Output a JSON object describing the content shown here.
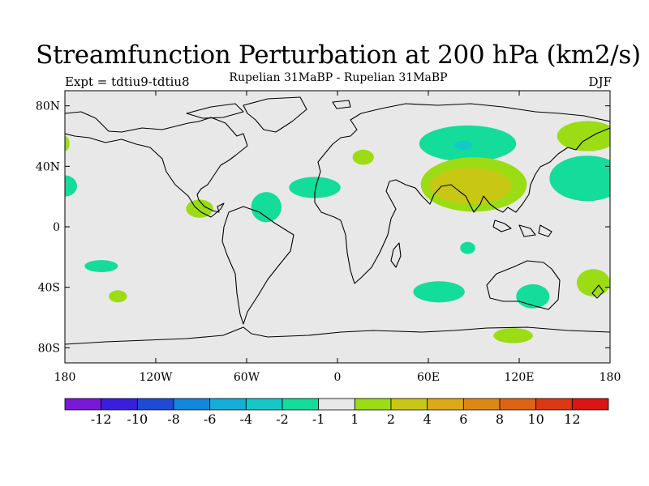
{
  "title": "Streamfunction Perturbation at 200 hPa (km2/s)",
  "subtitle": "Rupelian  31MaBP - Rupelian  31MaBP",
  "expt_label": "Expt = tdtiu9-tdtiu8",
  "season": "DJF",
  "map": {
    "projection": "cylindrical-equidistant",
    "lon_range": [
      -180,
      180
    ],
    "lat_range": [
      -90,
      90
    ],
    "lat_ticks": [
      {
        "value": 80,
        "label": "80N"
      },
      {
        "value": 40,
        "label": "40N"
      },
      {
        "value": 0,
        "label": "0"
      },
      {
        "value": -40,
        "label": "40S"
      },
      {
        "value": -80,
        "label": "80S"
      }
    ],
    "lon_ticks": [
      {
        "value": -180,
        "label": "180"
      },
      {
        "value": -120,
        "label": "120W"
      },
      {
        "value": -60,
        "label": "60W"
      },
      {
        "value": 0,
        "label": "0"
      },
      {
        "value": 60,
        "label": "60E"
      },
      {
        "value": 120,
        "label": "120E"
      },
      {
        "value": 180,
        "label": "180"
      }
    ],
    "background_color": "#e8e8e8",
    "anomaly_regions": [
      {
        "name": "north-asia-negative",
        "lon": 86,
        "lat": 55,
        "rlon": 32,
        "rlat": 12,
        "level": -1.5
      },
      {
        "name": "north-asia-negative-core",
        "lon": 83,
        "lat": 54,
        "rlon": 6,
        "rlat": 3,
        "level": -3
      },
      {
        "name": "tibet-positive",
        "lon": 90,
        "lat": 28,
        "rlon": 35,
        "rlat": 18,
        "level": 1.5
      },
      {
        "name": "tibet-positive-core",
        "lon": 88,
        "lat": 27,
        "rlon": 27,
        "rlat": 12,
        "level": 3
      },
      {
        "name": "europe-positive",
        "lon": 17,
        "lat": 46,
        "rlon": 7,
        "rlat": 5,
        "level": 1.5
      },
      {
        "name": "north-pacific-negative",
        "lon": 165,
        "lat": 32,
        "rlon": 25,
        "rlat": 15,
        "level": -1.5
      },
      {
        "name": "northeast-asia-positive",
        "lon": 165,
        "lat": 60,
        "rlon": 20,
        "rlat": 10,
        "level": 1.5
      },
      {
        "name": "alaska-positive-edge",
        "lon": -180,
        "lat": 55,
        "rlon": 3,
        "rlat": 5,
        "level": 1.5
      },
      {
        "name": "east-pacific-negative",
        "lon": -180,
        "lat": 27,
        "rlon": 8,
        "rlat": 7,
        "level": -1.5
      },
      {
        "name": "central-america-positive",
        "lon": -91,
        "lat": 12,
        "rlon": 9,
        "rlat": 6,
        "level": 1.5
      },
      {
        "name": "atlantic-negative-west",
        "lon": -47,
        "lat": 13,
        "rlon": 10,
        "rlat": 10,
        "level": -1.5
      },
      {
        "name": "atlantic-negative-east",
        "lon": -15,
        "lat": 26,
        "rlon": 17,
        "rlat": 7,
        "level": -1.5
      },
      {
        "name": "south-pacific-negative",
        "lon": -156,
        "lat": -26,
        "rlon": 11,
        "rlat": 4,
        "level": -1.5
      },
      {
        "name": "south-pacific-positive",
        "lon": -145,
        "lat": -46,
        "rlon": 6,
        "rlat": 4,
        "level": 1.5
      },
      {
        "name": "indian-ocean-small-negative",
        "lon": 86,
        "lat": -14,
        "rlon": 5,
        "rlat": 4,
        "level": -1.5
      },
      {
        "name": "south-indian-negative",
        "lon": 67,
        "lat": -43,
        "rlon": 17,
        "rlat": 7,
        "level": -1.5
      },
      {
        "name": "australia-negative",
        "lon": 129,
        "lat": -46,
        "rlon": 11,
        "rlat": 8,
        "level": -1.5
      },
      {
        "name": "southwest-pacific-positive",
        "lon": 169,
        "lat": -37,
        "rlon": 11,
        "rlat": 9,
        "level": 1.5
      },
      {
        "name": "antarctic-positive",
        "lon": 116,
        "lat": -72,
        "rlon": 13,
        "rlat": 5,
        "level": 1.5
      }
    ]
  },
  "colorbar": {
    "colors": [
      "#7a18d8",
      "#3a1ee0",
      "#1e4ad6",
      "#1486dc",
      "#14aed8",
      "#14c8c8",
      "#14dc9a",
      "#e8e8e8",
      "#9cdc14",
      "#c8c814",
      "#dcaa14",
      "#dc8814",
      "#dc6414",
      "#dc3814",
      "#dc1414"
    ],
    "labels": [
      "-12",
      "-10",
      "-8",
      "-6",
      "-4",
      "-2",
      "-1",
      "1",
      "2",
      "4",
      "6",
      "8",
      "10",
      "12"
    ]
  }
}
